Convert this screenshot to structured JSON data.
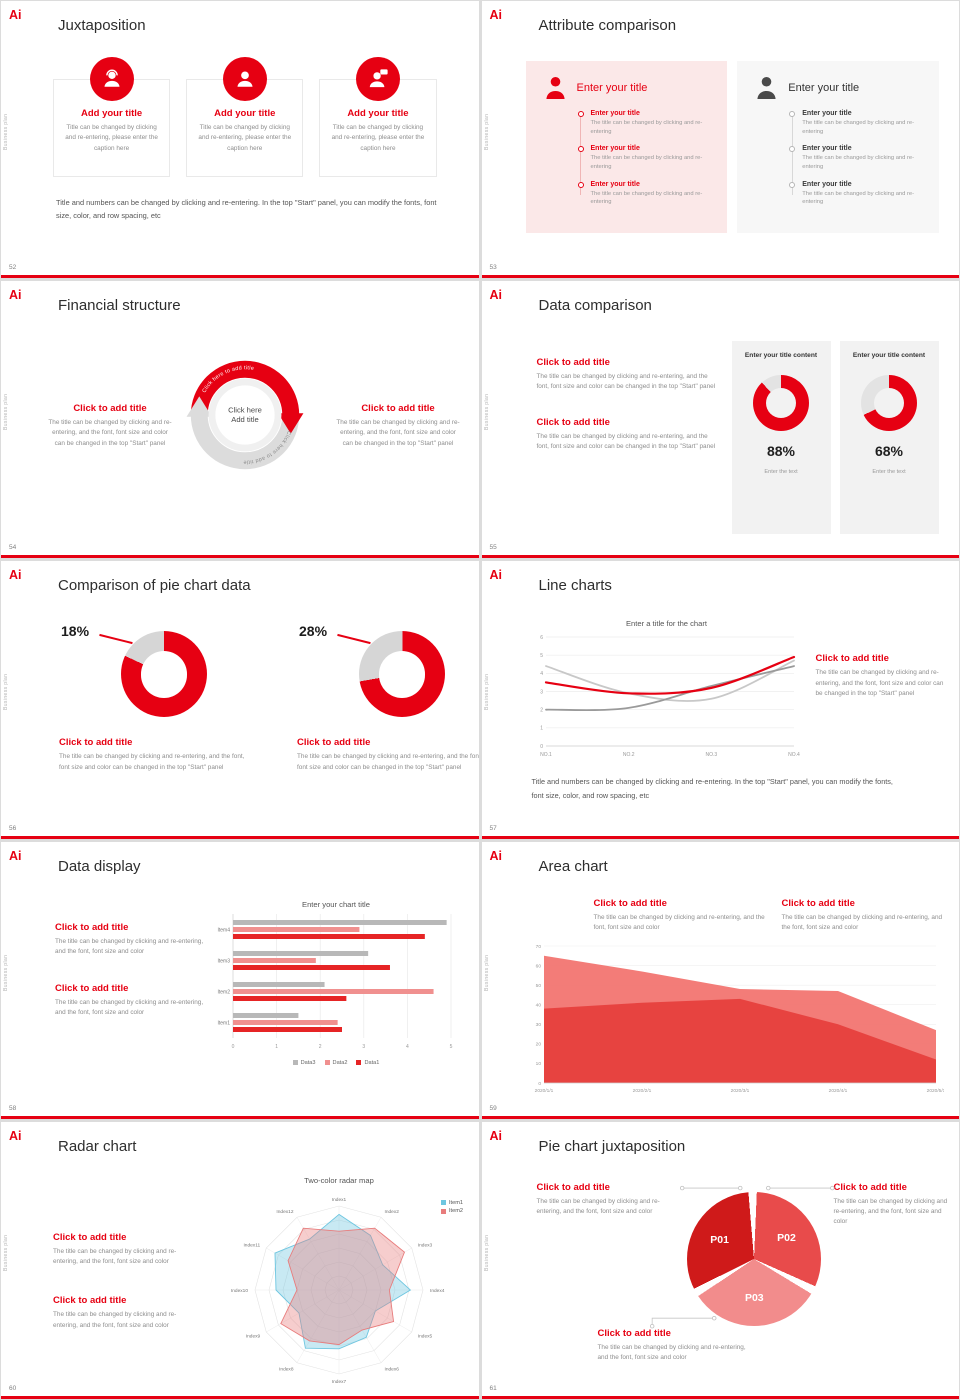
{
  "common": {
    "logo": "Ai",
    "side_text": "Business plan",
    "accent": "#e60012"
  },
  "slides": {
    "s52": {
      "number": "52",
      "title": "Juxtaposition",
      "cards": [
        {
          "title": "Add your title",
          "caption": "Title can be changed by clicking and re-entering, please enter the caption here"
        },
        {
          "title": "Add your title",
          "caption": "Title can be changed by clicking and re-entering, please enter the caption here"
        },
        {
          "title": "Add your title",
          "caption": "Title can be changed by clicking and re-entering, please enter the caption here"
        }
      ],
      "footer": "Title and numbers can be changed by clicking and re-entering. In the top \"Start\" panel, you can modify the fonts, font size, color, and row spacing, etc"
    },
    "s53": {
      "number": "53",
      "title": "Attribute comparison",
      "panels": [
        {
          "header": "Enter your title",
          "items": [
            {
              "title": "Enter your title",
              "caption": "The title can be changed by clicking and re-entering"
            },
            {
              "title": "Enter your title",
              "caption": "The title can be changed by clicking and re-entering"
            },
            {
              "title": "Enter your title",
              "caption": "The title can be changed by clicking and re-entering"
            }
          ]
        },
        {
          "header": "Enter your title",
          "items": [
            {
              "title": "Enter your title",
              "caption": "The title can be changed by clicking and re-entering"
            },
            {
              "title": "Enter your title",
              "caption": "The title can be changed by clicking and re-entering"
            },
            {
              "title": "Enter your title",
              "caption": "The title can be changed by clicking and re-entering"
            }
          ]
        }
      ]
    },
    "s54": {
      "number": "54",
      "title": "Financial structure",
      "diagram": {
        "center_line1": "Click here",
        "center_line2": "Add title",
        "arc_top_label": "Click here to add title",
        "arc_bottom_label": "Click here to add title"
      },
      "left": {
        "title": "Click to add title",
        "text": "The title can be changed by clicking and re-entering, and the font, font size and color can be changed in the top \"Start\" panel"
      },
      "right": {
        "title": "Click to add title",
        "text": "The title can be changed by clicking and re-entering, and the font, font size and color can be changed in the top \"Start\" panel"
      }
    },
    "s55": {
      "number": "55",
      "title": "Data comparison",
      "blocks": [
        {
          "title": "Click to add title",
          "text": "The title can be changed by clicking and re-entering, and the font, font size and color can be changed in the top \"Start\" panel"
        },
        {
          "title": "Click to add title",
          "text": "The title can be changed by clicking and re-entering, and the font, font size and color can be changed in the top \"Start\" panel"
        }
      ],
      "cards": [
        {
          "header": "Enter your title content",
          "percent_label": "88%",
          "footer": "Enter the text",
          "donut": {
            "type": "donut",
            "from": 0,
            "segments": [
              {
                "color": "#e60012",
                "pct": 88
              },
              {
                "color": "#e3e3e3",
                "pct": 12
              }
            ]
          }
        },
        {
          "header": "Enter your title content",
          "percent_label": "68%",
          "footer": "Enter the text",
          "donut": {
            "type": "donut",
            "from": 0,
            "segments": [
              {
                "color": "#e60012",
                "pct": 68
              },
              {
                "color": "#e3e3e3",
                "pct": 32
              }
            ]
          }
        }
      ]
    },
    "s56": {
      "number": "56",
      "title": "Comparison of pie chart data",
      "charts": [
        {
          "percent_label": "18%",
          "donut": {
            "type": "donut",
            "from": -65,
            "segments": [
              {
                "color": "#d6d6d6",
                "pct": 18
              },
              {
                "color": "#e60012",
                "pct": 82
              }
            ]
          },
          "block": {
            "title": "Click to add title",
            "text": "The title can be changed by clicking and re-entering, and the font, font size and color can be changed in the top \"Start\" panel"
          }
        },
        {
          "percent_label": "28%",
          "donut": {
            "type": "donut",
            "from": -100,
            "segments": [
              {
                "color": "#d6d6d6",
                "pct": 28
              },
              {
                "color": "#e60012",
                "pct": 72
              }
            ]
          },
          "block": {
            "title": "Click to add title",
            "text": "The title can be changed by clicking and re-entering, and the font, font size and color can be changed in the top \"Start\" panel"
          }
        }
      ]
    },
    "s57": {
      "number": "57",
      "title": "Line charts",
      "chart_title": "Enter a title for the chart",
      "chart": {
        "type": "line",
        "x": [
          "NO.1",
          "NO.2",
          "NO.3",
          "NO.4"
        ],
        "ylim": [
          0,
          6
        ],
        "yticks": [
          0,
          1,
          2,
          3,
          4,
          5,
          6
        ],
        "series": [
          {
            "name": "series-light-gray",
            "color": "#c8c8c8",
            "width": 1.8,
            "values": [
              4.4,
              2.9,
              2.6,
              4.7
            ]
          },
          {
            "name": "series-dark-gray",
            "color": "#9a9a9a",
            "width": 1.8,
            "values": [
              2.0,
              2.1,
              3.3,
              4.4
            ]
          },
          {
            "name": "series-red",
            "color": "#e60012",
            "width": 2.2,
            "values": [
              3.5,
              2.9,
              3.2,
              4.9
            ]
          }
        ]
      },
      "block": {
        "title": "Click to add title",
        "text": "The title can be changed by clicking and re-entering, and the font, font size and color can be changed in the top \"Start\" panel"
      },
      "footer": "Title and numbers can be changed by clicking and re-entering. In the top \"Start\" panel, you can modify the fonts, font size, color, and row spacing, etc"
    },
    "s58": {
      "number": "58",
      "title": "Data display",
      "blocks": [
        {
          "title": "Click to add title",
          "text": "The title can be changed by clicking and re-entering, and the font, font size and color"
        },
        {
          "title": "Click to add title",
          "text": "The title can be changed by clicking and re-entering, and the font, font size and color"
        }
      ],
      "chart_title": "Enter your chart title",
      "chart": {
        "type": "bar",
        "categories": [
          "Item4",
          "Item3",
          "Item2",
          "Item1"
        ],
        "xlim": [
          0,
          5
        ],
        "xticks": [
          0,
          1,
          2,
          3,
          4,
          5
        ],
        "series": [
          {
            "name": "Data3",
            "color": "#b8b8b8",
            "values": [
              4.9,
              3.1,
              2.1,
              1.5
            ]
          },
          {
            "name": "Data2",
            "color": "#f0908f",
            "values": [
              2.9,
              1.9,
              4.6,
              2.4
            ]
          },
          {
            "name": "Data1",
            "color": "#e62425",
            "values": [
              4.4,
              3.6,
              2.6,
              2.5
            ]
          }
        ],
        "legend": [
          "Data3",
          "Data2",
          "Data1"
        ]
      }
    },
    "s59": {
      "number": "59",
      "title": "Area chart",
      "blocks": [
        {
          "title": "Click to add title",
          "text": "The title can be changed by clicking and re-entering, and the font, font size and color"
        },
        {
          "title": "Click to add title",
          "text": "The title can be changed by clicking and re-entering, and the font, font size and color"
        }
      ],
      "chart": {
        "type": "area",
        "x": [
          "2020/1/1",
          "2020/2/1",
          "2020/3/1",
          "2020/4/1",
          "2020/5/1"
        ],
        "ylim": [
          0,
          70
        ],
        "yticks": [
          0,
          10,
          20,
          30,
          40,
          50,
          60,
          70
        ],
        "series": [
          {
            "name": "series-back",
            "color": "#f2716d",
            "values": [
              65,
              57,
              48,
              47,
              27
            ]
          },
          {
            "name": "series-front",
            "color": "#e63e3c",
            "values": [
              38,
              41,
              43,
              30,
              12
            ]
          }
        ]
      }
    },
    "s60": {
      "number": "60",
      "title": "Radar chart",
      "blocks": [
        {
          "title": "Click to add title",
          "text": "The title can be changed by clicking and re-entering, and the font, font size and color"
        },
        {
          "title": "Click to add title",
          "text": "The title can be changed by clicking and re-entering, and the font, font size and color"
        }
      ],
      "chart_title": "Two-color radar map",
      "chart": {
        "type": "radar",
        "axes": [
          "Index1",
          "Index2",
          "Index3",
          "Index4",
          "Index5",
          "Index6",
          "Index7",
          "Index8",
          "Index9",
          "Index10",
          "Index11",
          "Index12"
        ],
        "max": 10,
        "series": [
          {
            "name": "Item1",
            "color": "#6ec6e0",
            "values": [
              9,
              7.5,
              6,
              8.5,
              5,
              6.5,
              7,
              8,
              5.5,
              7.5,
              8.8,
              7
            ]
          },
          {
            "name": "Item2",
            "color": "#e87c7c",
            "values": [
              7,
              8.5,
              9,
              6,
              7.5,
              5.5,
              6.5,
              7,
              8,
              5,
              7,
              8.5
            ]
          }
        ]
      }
    },
    "s61": {
      "number": "61",
      "title": "Pie chart juxtaposition",
      "pie": {
        "type": "pie",
        "from": 240,
        "slices": [
          {
            "label": "P01",
            "color": "#cf1a1a",
            "pct": 33
          },
          {
            "label": "P02",
            "color": "#e84b4b",
            "pct": 33
          },
          {
            "label": "P03",
            "color": "#f28c8c",
            "pct": 34
          }
        ]
      },
      "blocks": [
        {
          "title": "Click to add title",
          "text": "The title can be changed by clicking and re-entering, and the font, font size and color"
        },
        {
          "title": "Click to add title",
          "text": "The title can be changed by clicking and re-entering, and the font, font size and color"
        },
        {
          "title": "Click to add title",
          "text": "The title can be changed by clicking and re-entering, and the font, font size and color"
        }
      ]
    }
  }
}
